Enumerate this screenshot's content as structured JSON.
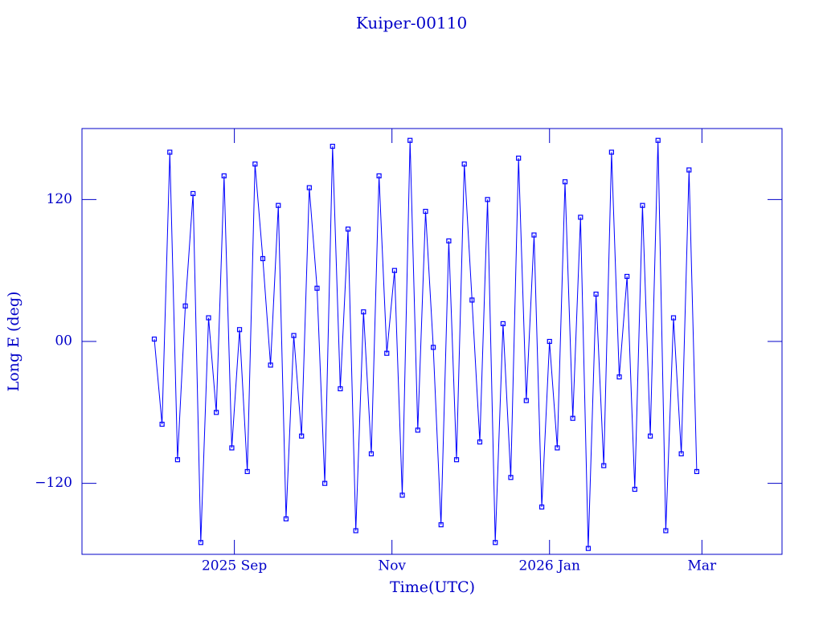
{
  "chart_data": {
    "type": "line",
    "title": "Kuiper-00110",
    "x_label": "Time(UTC)",
    "y_label": "Long E (deg)",
    "color": "#0000ff",
    "xlim": [
      "2025-07-04",
      "2026-04-01"
    ],
    "xticks": [
      {
        "value": "2025-09-01",
        "label": "2025 Sep"
      },
      {
        "value": "2025-11-01",
        "label": "Nov"
      },
      {
        "value": "2026-01-01",
        "label": "2026 Jan"
      },
      {
        "value": "2026-03-01",
        "label": "Mar"
      }
    ],
    "ylim": [
      -180,
      180
    ],
    "yticks": [
      {
        "value": -120,
        "label": "−120"
      },
      {
        "value": 0,
        "label": "00"
      },
      120
    ],
    "x": [
      "2025-08-01",
      "2025-08-04",
      "2025-08-07",
      "2025-08-10",
      "2025-08-13",
      "2025-08-16",
      "2025-08-19",
      "2025-08-22",
      "2025-08-25",
      "2025-08-28",
      "2025-08-31",
      "2025-09-03",
      "2025-09-06",
      "2025-09-09",
      "2025-09-12",
      "2025-09-15",
      "2025-09-18",
      "2025-09-21",
      "2025-09-24",
      "2025-09-27",
      "2025-09-30",
      "2025-10-03",
      "2025-10-06",
      "2025-10-09",
      "2025-10-12",
      "2025-10-15",
      "2025-10-18",
      "2025-10-21",
      "2025-10-24",
      "2025-10-27",
      "2025-10-30",
      "2025-11-02",
      "2025-11-05",
      "2025-11-08",
      "2025-11-11",
      "2025-11-14",
      "2025-11-17",
      "2025-11-20",
      "2025-11-23",
      "2025-11-26",
      "2025-11-29",
      "2025-12-02",
      "2025-12-05",
      "2025-12-08",
      "2025-12-11",
      "2025-12-14",
      "2025-12-17",
      "2025-12-20",
      "2025-12-23",
      "2025-12-26",
      "2025-12-29",
      "2026-01-01",
      "2026-01-04",
      "2026-01-07",
      "2026-01-10",
      "2026-01-13",
      "2026-01-16",
      "2026-01-19",
      "2026-01-22",
      "2026-01-25",
      "2026-01-28",
      "2026-01-31",
      "2026-02-03",
      "2026-02-06",
      "2026-02-09",
      "2026-02-12",
      "2026-02-15",
      "2026-02-18",
      "2026-02-21",
      "2026-02-24",
      "2026-02-27"
    ],
    "values": [
      2,
      -70,
      160,
      -100,
      30,
      125,
      -170,
      20,
      -60,
      140,
      -90,
      10,
      -110,
      150,
      70,
      -20,
      115,
      -150,
      5,
      -80,
      130,
      45,
      -120,
      165,
      -40,
      95,
      -160,
      25,
      -95,
      140,
      -10,
      60,
      -130,
      170,
      -75,
      110,
      -5,
      -155,
      85,
      -100,
      150,
      35,
      -85,
      120,
      -170,
      15,
      -115,
      155,
      -50,
      90,
      -140,
      0,
      -90,
      135,
      -65,
      105,
      -175,
      40,
      -105,
      160,
      -30,
      55,
      -125,
      115,
      -80,
      170,
      -160,
      20,
      -95,
      145,
      -110
    ]
  }
}
